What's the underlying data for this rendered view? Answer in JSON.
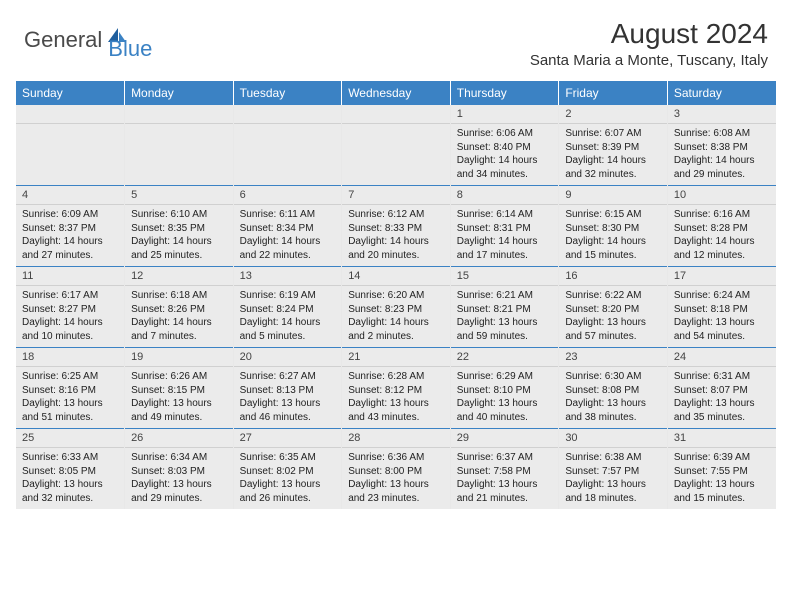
{
  "brand": {
    "general": "General",
    "blue": "Blue"
  },
  "title": "August 2024",
  "location": "Santa Maria a Monte, Tuscany, Italy",
  "colors": {
    "header_bg": "#3b82c4",
    "header_text": "#ffffff",
    "daynum_bg": "#ebebeb",
    "body_text": "#222222",
    "grid_line": "#e8e8e8"
  },
  "day_headers": [
    "Sunday",
    "Monday",
    "Tuesday",
    "Wednesday",
    "Thursday",
    "Friday",
    "Saturday"
  ],
  "weeks": [
    [
      null,
      null,
      null,
      null,
      {
        "n": "1",
        "sr": "Sunrise: 6:06 AM",
        "ss": "Sunset: 8:40 PM",
        "d1": "Daylight: 14 hours",
        "d2": "and 34 minutes."
      },
      {
        "n": "2",
        "sr": "Sunrise: 6:07 AM",
        "ss": "Sunset: 8:39 PM",
        "d1": "Daylight: 14 hours",
        "d2": "and 32 minutes."
      },
      {
        "n": "3",
        "sr": "Sunrise: 6:08 AM",
        "ss": "Sunset: 8:38 PM",
        "d1": "Daylight: 14 hours",
        "d2": "and 29 minutes."
      }
    ],
    [
      {
        "n": "4",
        "sr": "Sunrise: 6:09 AM",
        "ss": "Sunset: 8:37 PM",
        "d1": "Daylight: 14 hours",
        "d2": "and 27 minutes."
      },
      {
        "n": "5",
        "sr": "Sunrise: 6:10 AM",
        "ss": "Sunset: 8:35 PM",
        "d1": "Daylight: 14 hours",
        "d2": "and 25 minutes."
      },
      {
        "n": "6",
        "sr": "Sunrise: 6:11 AM",
        "ss": "Sunset: 8:34 PM",
        "d1": "Daylight: 14 hours",
        "d2": "and 22 minutes."
      },
      {
        "n": "7",
        "sr": "Sunrise: 6:12 AM",
        "ss": "Sunset: 8:33 PM",
        "d1": "Daylight: 14 hours",
        "d2": "and 20 minutes."
      },
      {
        "n": "8",
        "sr": "Sunrise: 6:14 AM",
        "ss": "Sunset: 8:31 PM",
        "d1": "Daylight: 14 hours",
        "d2": "and 17 minutes."
      },
      {
        "n": "9",
        "sr": "Sunrise: 6:15 AM",
        "ss": "Sunset: 8:30 PM",
        "d1": "Daylight: 14 hours",
        "d2": "and 15 minutes."
      },
      {
        "n": "10",
        "sr": "Sunrise: 6:16 AM",
        "ss": "Sunset: 8:28 PM",
        "d1": "Daylight: 14 hours",
        "d2": "and 12 minutes."
      }
    ],
    [
      {
        "n": "11",
        "sr": "Sunrise: 6:17 AM",
        "ss": "Sunset: 8:27 PM",
        "d1": "Daylight: 14 hours",
        "d2": "and 10 minutes."
      },
      {
        "n": "12",
        "sr": "Sunrise: 6:18 AM",
        "ss": "Sunset: 8:26 PM",
        "d1": "Daylight: 14 hours",
        "d2": "and 7 minutes."
      },
      {
        "n": "13",
        "sr": "Sunrise: 6:19 AM",
        "ss": "Sunset: 8:24 PM",
        "d1": "Daylight: 14 hours",
        "d2": "and 5 minutes."
      },
      {
        "n": "14",
        "sr": "Sunrise: 6:20 AM",
        "ss": "Sunset: 8:23 PM",
        "d1": "Daylight: 14 hours",
        "d2": "and 2 minutes."
      },
      {
        "n": "15",
        "sr": "Sunrise: 6:21 AM",
        "ss": "Sunset: 8:21 PM",
        "d1": "Daylight: 13 hours",
        "d2": "and 59 minutes."
      },
      {
        "n": "16",
        "sr": "Sunrise: 6:22 AM",
        "ss": "Sunset: 8:20 PM",
        "d1": "Daylight: 13 hours",
        "d2": "and 57 minutes."
      },
      {
        "n": "17",
        "sr": "Sunrise: 6:24 AM",
        "ss": "Sunset: 8:18 PM",
        "d1": "Daylight: 13 hours",
        "d2": "and 54 minutes."
      }
    ],
    [
      {
        "n": "18",
        "sr": "Sunrise: 6:25 AM",
        "ss": "Sunset: 8:16 PM",
        "d1": "Daylight: 13 hours",
        "d2": "and 51 minutes."
      },
      {
        "n": "19",
        "sr": "Sunrise: 6:26 AM",
        "ss": "Sunset: 8:15 PM",
        "d1": "Daylight: 13 hours",
        "d2": "and 49 minutes."
      },
      {
        "n": "20",
        "sr": "Sunrise: 6:27 AM",
        "ss": "Sunset: 8:13 PM",
        "d1": "Daylight: 13 hours",
        "d2": "and 46 minutes."
      },
      {
        "n": "21",
        "sr": "Sunrise: 6:28 AM",
        "ss": "Sunset: 8:12 PM",
        "d1": "Daylight: 13 hours",
        "d2": "and 43 minutes."
      },
      {
        "n": "22",
        "sr": "Sunrise: 6:29 AM",
        "ss": "Sunset: 8:10 PM",
        "d1": "Daylight: 13 hours",
        "d2": "and 40 minutes."
      },
      {
        "n": "23",
        "sr": "Sunrise: 6:30 AM",
        "ss": "Sunset: 8:08 PM",
        "d1": "Daylight: 13 hours",
        "d2": "and 38 minutes."
      },
      {
        "n": "24",
        "sr": "Sunrise: 6:31 AM",
        "ss": "Sunset: 8:07 PM",
        "d1": "Daylight: 13 hours",
        "d2": "and 35 minutes."
      }
    ],
    [
      {
        "n": "25",
        "sr": "Sunrise: 6:33 AM",
        "ss": "Sunset: 8:05 PM",
        "d1": "Daylight: 13 hours",
        "d2": "and 32 minutes."
      },
      {
        "n": "26",
        "sr": "Sunrise: 6:34 AM",
        "ss": "Sunset: 8:03 PM",
        "d1": "Daylight: 13 hours",
        "d2": "and 29 minutes."
      },
      {
        "n": "27",
        "sr": "Sunrise: 6:35 AM",
        "ss": "Sunset: 8:02 PM",
        "d1": "Daylight: 13 hours",
        "d2": "and 26 minutes."
      },
      {
        "n": "28",
        "sr": "Sunrise: 6:36 AM",
        "ss": "Sunset: 8:00 PM",
        "d1": "Daylight: 13 hours",
        "d2": "and 23 minutes."
      },
      {
        "n": "29",
        "sr": "Sunrise: 6:37 AM",
        "ss": "Sunset: 7:58 PM",
        "d1": "Daylight: 13 hours",
        "d2": "and 21 minutes."
      },
      {
        "n": "30",
        "sr": "Sunrise: 6:38 AM",
        "ss": "Sunset: 7:57 PM",
        "d1": "Daylight: 13 hours",
        "d2": "and 18 minutes."
      },
      {
        "n": "31",
        "sr": "Sunrise: 6:39 AM",
        "ss": "Sunset: 7:55 PM",
        "d1": "Daylight: 13 hours",
        "d2": "and 15 minutes."
      }
    ]
  ]
}
